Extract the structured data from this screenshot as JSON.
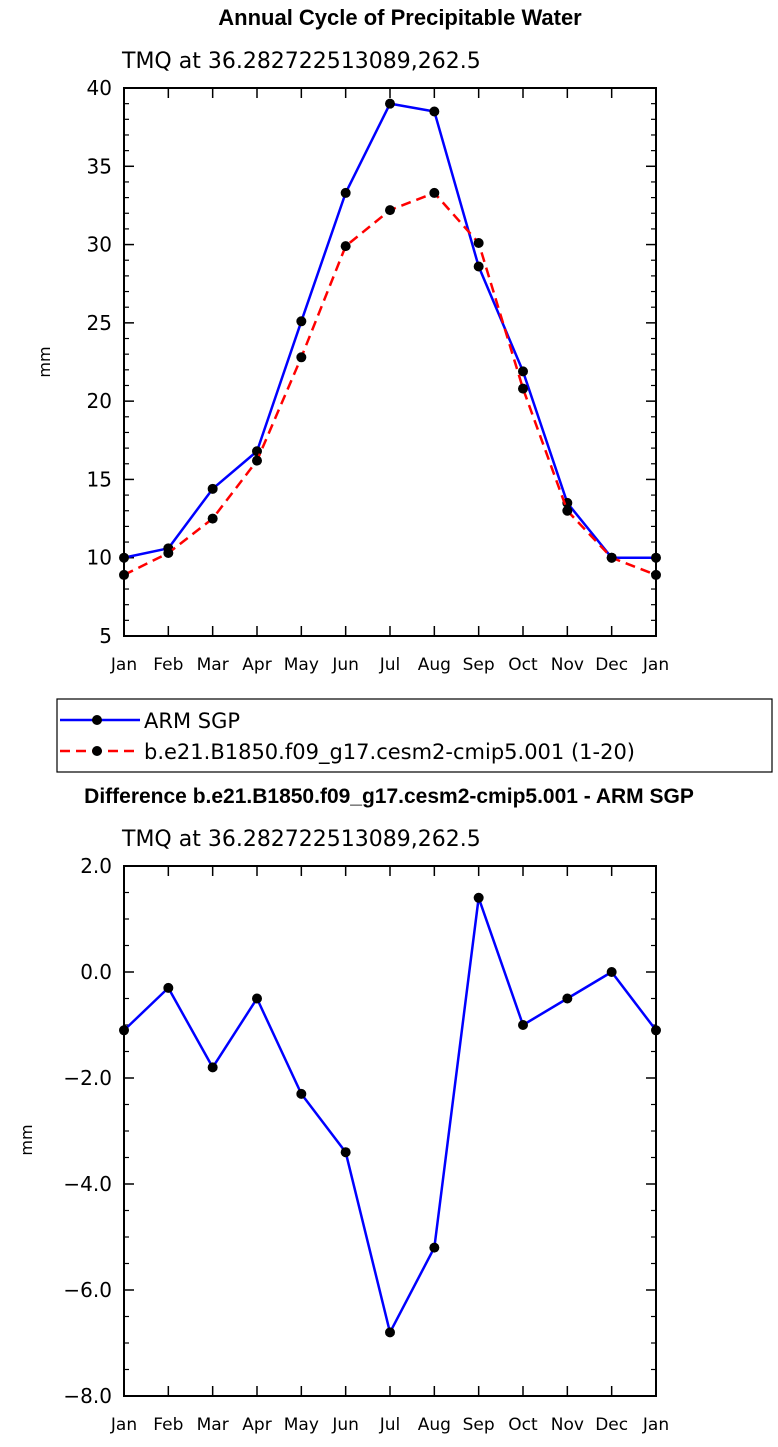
{
  "chart_data": [
    {
      "type": "line",
      "title": "Annual Cycle of Precipitable Water",
      "subtitle": "TMQ at 36.282722513089,262.5",
      "xlabel": "",
      "ylabel": "mm",
      "categories": [
        "Jan",
        "Feb",
        "Mar",
        "Apr",
        "May",
        "Jun",
        "Jul",
        "Aug",
        "Sep",
        "Oct",
        "Nov",
        "Dec",
        "Jan"
      ],
      "ylim": [
        5,
        40
      ],
      "yticks": [
        5,
        10,
        15,
        20,
        25,
        30,
        35,
        40
      ],
      "ytick_labels": [
        "5",
        "10",
        "15",
        "20",
        "25",
        "30",
        "35",
        "40"
      ],
      "legend_position": "bottom",
      "series": [
        {
          "name": "ARM SGP",
          "color": "#0000ff",
          "dash": "solid",
          "values": [
            10.0,
            10.6,
            14.4,
            16.8,
            25.1,
            33.3,
            39.0,
            38.5,
            28.6,
            21.9,
            13.5,
            10.0,
            10.0
          ]
        },
        {
          "name": "b.e21.B1850.f09_g17.cesm2-cmip5.001 (1-20)",
          "color": "#ff0000",
          "dash": "dashed",
          "values": [
            8.9,
            10.3,
            12.5,
            16.2,
            22.8,
            29.9,
            32.2,
            33.3,
            30.1,
            20.8,
            13.0,
            10.0,
            8.9
          ]
        }
      ]
    },
    {
      "type": "line",
      "title": "Difference b.e21.B1850.f09_g17.cesm2-cmip5.001 - ARM SGP",
      "subtitle": "TMQ at 36.282722513089,262.5",
      "xlabel": "",
      "ylabel": "mm",
      "categories": [
        "Jan",
        "Feb",
        "Mar",
        "Apr",
        "May",
        "Jun",
        "Jul",
        "Aug",
        "Sep",
        "Oct",
        "Nov",
        "Dec",
        "Jan"
      ],
      "ylim": [
        -8,
        2
      ],
      "yticks": [
        -8,
        -6,
        -4,
        -2,
        0,
        2
      ],
      "ytick_labels": [
        "−8.0",
        "−6.0",
        "−4.0",
        "−2.0",
        "0.0",
        "2.0"
      ],
      "series": [
        {
          "color": "#0000ff",
          "dash": "solid",
          "values": [
            -1.1,
            -0.3,
            -1.8,
            -0.5,
            -2.3,
            -3.4,
            -6.8,
            -5.2,
            1.4,
            -1.0,
            -0.5,
            0.0,
            -1.1
          ]
        }
      ]
    }
  ]
}
